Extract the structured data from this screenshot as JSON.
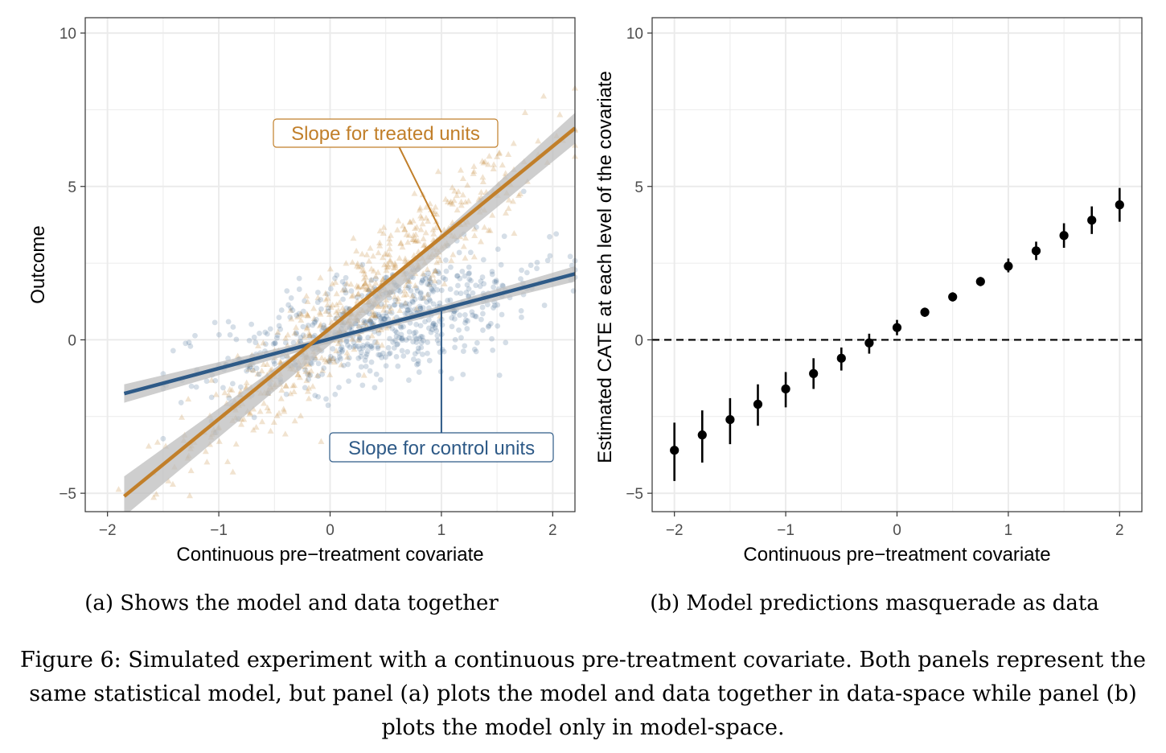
{
  "figure": {
    "sub_caption_a": "(a) Shows the model and data together",
    "sub_caption_b": "(b) Model predictions masquerade as data",
    "caption": "Figure 6: Simulated experiment with a continuous pre-treatment covariate. Both panels represent the same statistical model, but panel (a) plots the model and data together in data-space while panel (b) plots the model only in model-space."
  },
  "colors": {
    "treated": "#c17f2a",
    "control": "#2e5a87",
    "ribbon": "#bdbdbd",
    "grid": "#ebebeb",
    "points_b": "#000000"
  },
  "chart_data": [
    {
      "type": "scatter",
      "panel": "a",
      "xlabel": "Continuous pre−treatment covariate",
      "ylabel": "Outcome",
      "xlim": [
        -2.2,
        2.2
      ],
      "ylim": [
        -5.6,
        10.5
      ],
      "xticks": [
        -2,
        -1,
        0,
        1,
        2
      ],
      "xtick_labels": [
        "−2",
        "−1",
        "0",
        "1",
        "2"
      ],
      "yticks": [
        -5,
        0,
        5,
        10
      ],
      "ytick_labels": [
        "−5",
        "0",
        "5",
        "10"
      ],
      "grid": true,
      "series": [
        {
          "name": "Slope for treated units",
          "marker": "triangle",
          "fit_line": {
            "x": [
              -1.85,
              2.2
            ],
            "y": [
              -5.1,
              6.9
            ]
          },
          "ribbon": {
            "x": [
              -1.85,
              0.3,
              2.2
            ],
            "lower": [
              -5.75,
              0.75,
              6.4
            ],
            "upper": [
              -4.45,
              1.15,
              7.4
            ]
          },
          "data_model": {
            "x_range": [
              -1.9,
              2.2
            ],
            "n": 650,
            "intercept": 0.4,
            "slope": 3.0,
            "residual_sd": 0.9
          }
        },
        {
          "name": "Slope for control units",
          "marker": "circle",
          "fit_line": {
            "x": [
              -1.85,
              2.2
            ],
            "y": [
              -1.75,
              2.15
            ]
          },
          "ribbon": {
            "x": [
              -1.85,
              0.3,
              2.2
            ],
            "lower": [
              -2.05,
              0.22,
              1.9
            ],
            "upper": [
              -1.45,
              0.38,
              2.4
            ]
          },
          "data_model": {
            "x_range": [
              -1.5,
              2.2
            ],
            "n": 650,
            "intercept": 0.1,
            "slope": 0.95,
            "residual_sd": 0.9
          }
        }
      ],
      "annotations": [
        {
          "text": "Slope for treated units",
          "points_to": [
            1.0,
            3.5
          ]
        },
        {
          "text": "Slope for control units",
          "points_to": [
            1.0,
            1.0
          ]
        }
      ]
    },
    {
      "type": "scatter",
      "panel": "b",
      "xlabel": "Continuous pre−treatment covariate",
      "ylabel": "Estimated CATE at each level of the covariate",
      "xlim": [
        -2.2,
        2.2
      ],
      "ylim": [
        -5.6,
        10.5
      ],
      "xticks": [
        -2,
        -1,
        0,
        1,
        2
      ],
      "xtick_labels": [
        "−2",
        "−1",
        "0",
        "1",
        "2"
      ],
      "yticks": [
        -5,
        0,
        5,
        10
      ],
      "ytick_labels": [
        "−5",
        "0",
        "5",
        "10"
      ],
      "grid": true,
      "reference_line": {
        "y": 0,
        "style": "dashed"
      },
      "x": [
        -2,
        -1.75,
        -1.5,
        -1.25,
        -1,
        -0.75,
        -0.5,
        -0.25,
        0,
        0.25,
        0.5,
        0.75,
        1,
        1.25,
        1.5,
        1.75,
        2
      ],
      "y": [
        -3.6,
        -3.1,
        -2.6,
        -2.1,
        -1.6,
        -1.1,
        -0.6,
        -0.1,
        0.4,
        0.9,
        1.4,
        1.9,
        2.4,
        2.9,
        3.4,
        3.9,
        4.4
      ],
      "lower": [
        -4.6,
        -4.0,
        -3.4,
        -2.8,
        -2.2,
        -1.6,
        -1.0,
        -0.45,
        0.15,
        0.75,
        1.25,
        1.75,
        2.2,
        2.6,
        3.0,
        3.45,
        3.85
      ],
      "upper": [
        -2.7,
        -2.3,
        -1.9,
        -1.45,
        -1.05,
        -0.6,
        -0.25,
        0.2,
        0.65,
        1.05,
        1.55,
        2.05,
        2.65,
        3.2,
        3.8,
        4.35,
        4.95
      ]
    }
  ]
}
